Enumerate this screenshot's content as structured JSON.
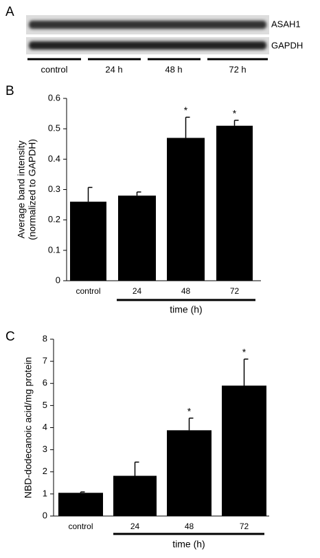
{
  "blot": {
    "panel": "A",
    "bands": [
      "ASAH1",
      "GAPDH"
    ],
    "lanes": [
      "control",
      "24 h",
      "48 h",
      "72 h"
    ]
  },
  "chart_data": [
    {
      "type": "bar",
      "panel": "B",
      "y_label": [
        "Average band intensity",
        "(normalized to GAPDH)"
      ],
      "x_label": "time (h)",
      "categories": [
        "control",
        "24",
        "48",
        "72"
      ],
      "values": [
        0.26,
        0.28,
        0.47,
        0.51
      ],
      "errors": [
        0.047,
        0.012,
        0.068,
        0.018
      ],
      "annotations": [
        {
          "text": "*",
          "x": "48"
        },
        {
          "text": "*",
          "x": "72"
        }
      ],
      "color": "#000000",
      "ylim": [
        0,
        0.6
      ],
      "yticks": [
        0,
        0.1,
        0.2,
        0.3,
        0.4,
        0.5,
        0.6
      ],
      "grid": false
    },
    {
      "type": "bar",
      "panel": "C",
      "y_label": [
        "NBD-dodecanoic acid/mg protein"
      ],
      "x_label": "time (h)",
      "categories": [
        "control",
        "24",
        "48",
        "72"
      ],
      "values": [
        1.05,
        1.82,
        3.88,
        5.9
      ],
      "errors": [
        0.04,
        0.62,
        0.55,
        1.2
      ],
      "annotations": [
        {
          "text": "*",
          "x": "48"
        },
        {
          "text": "*",
          "x": "72"
        }
      ],
      "color": "#000000",
      "ylim": [
        0,
        8
      ],
      "yticks": [
        0,
        1,
        2,
        3,
        4,
        5,
        6,
        7,
        8
      ],
      "grid": false
    }
  ]
}
